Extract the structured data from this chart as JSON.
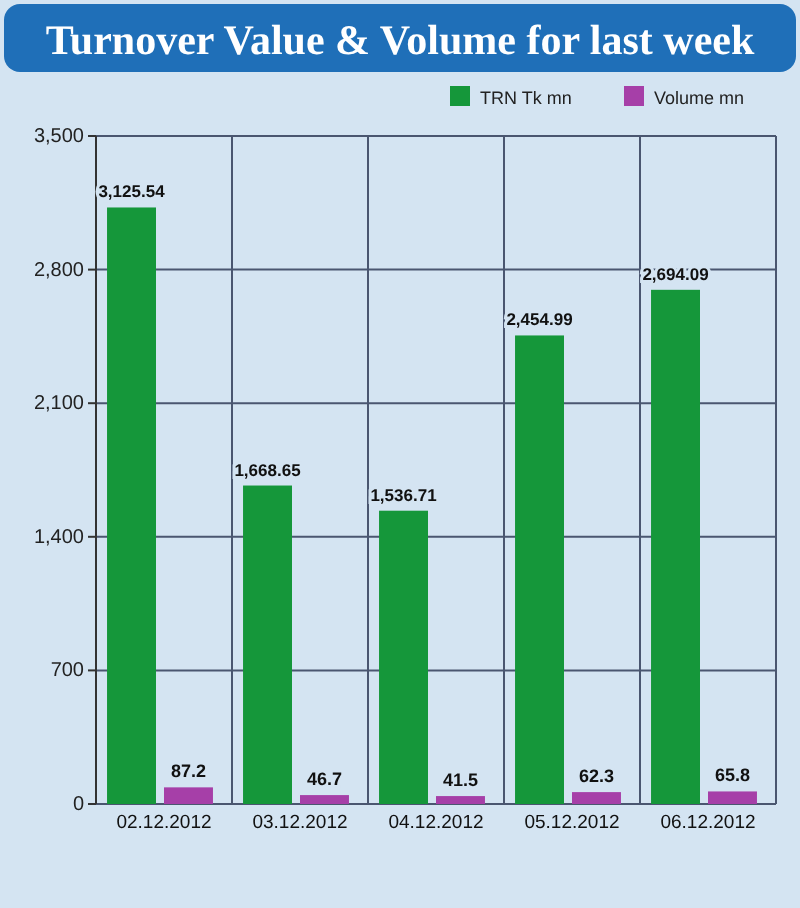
{
  "chart_data": {
    "type": "bar",
    "title": "Turnover Value & Volume for last week",
    "categories": [
      "02.12.2012",
      "03.12.2012",
      "04.12.2012",
      "05.12.2012",
      "06.12.2012"
    ],
    "series": [
      {
        "name": "TRN Tk mn",
        "color": "#15973a",
        "values": [
          3125.54,
          1668.65,
          1536.71,
          2454.99,
          2694.09
        ],
        "value_labels": [
          "3,125.54",
          "1,668.65",
          "1,536.71",
          "2,454.99",
          "2,694.09"
        ]
      },
      {
        "name": "Volume mn",
        "color": "#a63fa8",
        "values": [
          87.2,
          46.7,
          41.5,
          62.3,
          65.8
        ],
        "value_labels": [
          "87.2",
          "46.7",
          "41.5",
          "62.3",
          "65.8"
        ]
      }
    ],
    "ylim": [
      0,
      3500
    ],
    "yticks": [
      0,
      {
        "value": 700,
        "label": "700"
      },
      {
        "value": 1400,
        "label": "1,400"
      },
      {
        "value": 2100,
        "label": "2,100"
      },
      {
        "value": 2800,
        "label": "2,800"
      },
      {
        "value": 3500,
        "label": "3,500"
      }
    ],
    "grid": true,
    "legend": "top right"
  }
}
